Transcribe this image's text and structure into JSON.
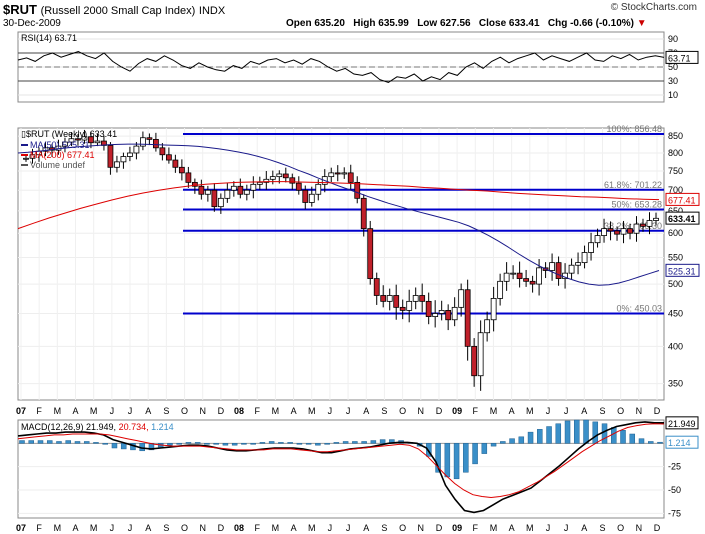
{
  "header": {
    "symbol": "$RUT",
    "name": "(Russell 2000 Small Cap Index)",
    "exchange": "INDX",
    "date": "30-Dec-2009",
    "open": "Open 635.20",
    "high": "High 635.99",
    "low": "Low 627.56",
    "close": "Close 633.41",
    "chg": "Chg -0.66 (-0.10%)",
    "brand": "© StockCharts.com"
  },
  "chart_data": [
    {
      "type": "line",
      "panel": "rsi",
      "title": "RSI(14) 63.71",
      "ylim": [
        0,
        100
      ],
      "yticks": [
        90,
        70,
        50,
        30,
        10
      ],
      "reference_lines": [
        70,
        30
      ],
      "last_value": 63.71,
      "last_label": "63.71"
    },
    {
      "type": "candlestick",
      "panel": "price",
      "title": "$RUT (Weekly) 633.41",
      "legend": [
        {
          "name": "MA(50) 525.31",
          "color": "#1a1a8a"
        },
        {
          "name": "MA(200) 677.41",
          "color": "#dd0000"
        },
        {
          "name": "Volume undef",
          "color": "#555555"
        }
      ],
      "ylim": [
        330,
        875
      ],
      "yticks": [
        850,
        800,
        750,
        700,
        650,
        600,
        550,
        500,
        450,
        400,
        350
      ],
      "x_month_labels": [
        "07",
        "F",
        "M",
        "A",
        "M",
        "J",
        "J",
        "A",
        "S",
        "O",
        "N",
        "D",
        "08",
        "F",
        "M",
        "A",
        "M",
        "J",
        "J",
        "A",
        "S",
        "O",
        "N",
        "D",
        "09",
        "F",
        "M",
        "A",
        "M",
        "J",
        "J",
        "A",
        "S",
        "O",
        "N",
        "D"
      ],
      "fib_levels": [
        {
          "label": "100%: 856.48",
          "value": 856.48
        },
        {
          "label": "61.8%: 701.22",
          "value": 701.22
        },
        {
          "label": "50%: 653.28",
          "value": 653.28
        },
        {
          "label": "38.2%: 605.30",
          "value": 605.3
        },
        {
          "label": "0%: 450.03",
          "value": 450.03
        }
      ],
      "price_tags": [
        {
          "label": "677.41",
          "value": 677.41,
          "color": "#dd0000"
        },
        {
          "label": "633.41",
          "value": 633.41,
          "color": "#000000"
        },
        {
          "label": "525.31",
          "value": 525.31,
          "color": "#1a1a8a"
        }
      ],
      "series": [
        {
          "name": "Weekly close",
          "values": [
            785,
            795,
            805,
            815,
            808,
            820,
            832,
            842,
            838,
            848,
            830,
            835,
            822,
            760,
            775,
            790,
            800,
            820,
            845,
            840,
            815,
            795,
            780,
            760,
            745,
            720,
            710,
            690,
            700,
            660,
            680,
            700,
            710,
            690,
            700,
            715,
            720,
            728,
            735,
            742,
            732,
            718,
            700,
            670,
            690,
            715,
            735,
            745,
            742,
            745,
            720,
            680,
            610,
            510,
            480,
            470,
            480,
            460,
            455,
            470,
            480,
            470,
            445,
            450,
            455,
            440,
            460,
            490,
            400,
            360,
            420,
            440,
            475,
            505,
            520,
            520,
            510,
            505,
            500,
            530,
            525,
            540,
            510,
            520,
            535,
            540,
            560,
            580,
            595,
            610,
            605,
            598,
            610,
            600,
            620,
            615,
            628,
            633
          ]
        },
        {
          "name": "MA(50)",
          "values": [
            800,
            802,
            805,
            808,
            812,
            815,
            818,
            820,
            822,
            824,
            825,
            826,
            826,
            825,
            824,
            823,
            822,
            821,
            819,
            816,
            812,
            808,
            803,
            797,
            790,
            782,
            773,
            763,
            752,
            742,
            731,
            721,
            711,
            702,
            693,
            684,
            676,
            668,
            661,
            654,
            648,
            642,
            636,
            630,
            624,
            616,
            606,
            595,
            583,
            570,
            557,
            545,
            534,
            525,
            517,
            510,
            504,
            500,
            498,
            499,
            502,
            507,
            513,
            519,
            525
          ]
        },
        {
          "name": "MA(200)",
          "values": [
            610,
            622,
            634,
            645,
            656,
            666,
            676,
            685,
            693,
            700,
            706,
            711,
            715,
            718,
            720,
            721,
            722,
            722,
            721,
            720,
            719,
            718,
            716,
            714,
            712,
            710,
            707,
            705,
            702,
            700,
            698,
            695,
            692,
            690,
            688,
            686,
            684,
            683,
            681,
            679,
            678,
            677
          ]
        }
      ]
    },
    {
      "type": "bar",
      "panel": "macd",
      "title": "MACD(12,26,9) 21.949, 20.734, 1.214",
      "ylim": [
        -80,
        25
      ],
      "yticks": [
        0,
        -25,
        -50,
        -75
      ],
      "series": [
        {
          "name": "MACD(12,26,9)",
          "values": [
            8,
            9,
            10,
            11,
            11,
            12,
            12,
            12,
            11,
            9,
            4,
            1,
            -2,
            -5,
            -6,
            -5,
            -4,
            -3,
            -2,
            -2,
            -3,
            -5,
            -7,
            -8,
            -8,
            -7,
            -6,
            -5,
            -5,
            -5,
            -6,
            -8,
            -10,
            -10,
            -8,
            -6,
            -5,
            -4,
            -2,
            0,
            1,
            1,
            0,
            -5,
            -20,
            -45,
            -60,
            -72,
            -74,
            -72,
            -66,
            -60,
            -56,
            -52,
            -48,
            -40,
            -32,
            -24,
            -15,
            -6,
            2,
            9,
            14,
            18,
            20,
            22,
            23,
            22,
            21.949
          ]
        },
        {
          "name": "Signal",
          "values": [
            5,
            6,
            7,
            8,
            9,
            9,
            10,
            10,
            10,
            10,
            9,
            7,
            5,
            3,
            1,
            -1,
            -2,
            -3,
            -3,
            -3,
            -3,
            -4,
            -5,
            -6,
            -7,
            -7,
            -7,
            -7,
            -6,
            -6,
            -6,
            -7,
            -8,
            -9,
            -9,
            -8,
            -7,
            -6,
            -5,
            -4,
            -3,
            -2,
            -1,
            -2,
            -6,
            -14,
            -24,
            -34,
            -43,
            -50,
            -55,
            -57,
            -58,
            -57,
            -55,
            -52,
            -47,
            -42,
            -36,
            -30,
            -23,
            -16,
            -9,
            -3,
            3,
            8,
            13,
            17,
            19,
            20.5,
            21,
            20.734
          ]
        },
        {
          "name": "Histogram",
          "values": [
            3,
            3,
            3,
            3,
            2,
            3,
            2,
            2,
            1,
            -1,
            -5,
            -6,
            -7,
            -8,
            -7,
            -4,
            -2,
            0,
            1,
            1,
            0,
            -1,
            -2,
            -2,
            -1,
            0,
            1,
            2,
            1,
            1,
            0,
            -1,
            -2,
            -1,
            1,
            2,
            2,
            2,
            3,
            4,
            4,
            3,
            1,
            -3,
            -14,
            -31,
            -36,
            -38,
            -31,
            -22,
            -11,
            -3,
            2,
            5,
            7,
            12,
            15,
            18,
            21,
            24,
            25,
            25,
            23,
            21,
            17,
            14,
            10,
            5,
            2,
            1.214
          ]
        }
      ],
      "tags": [
        {
          "label": "21.949",
          "value": 21.949,
          "color": "#000000"
        },
        {
          "label": "1.214",
          "value": 1.214,
          "color": "#3a8fc8"
        }
      ]
    }
  ]
}
